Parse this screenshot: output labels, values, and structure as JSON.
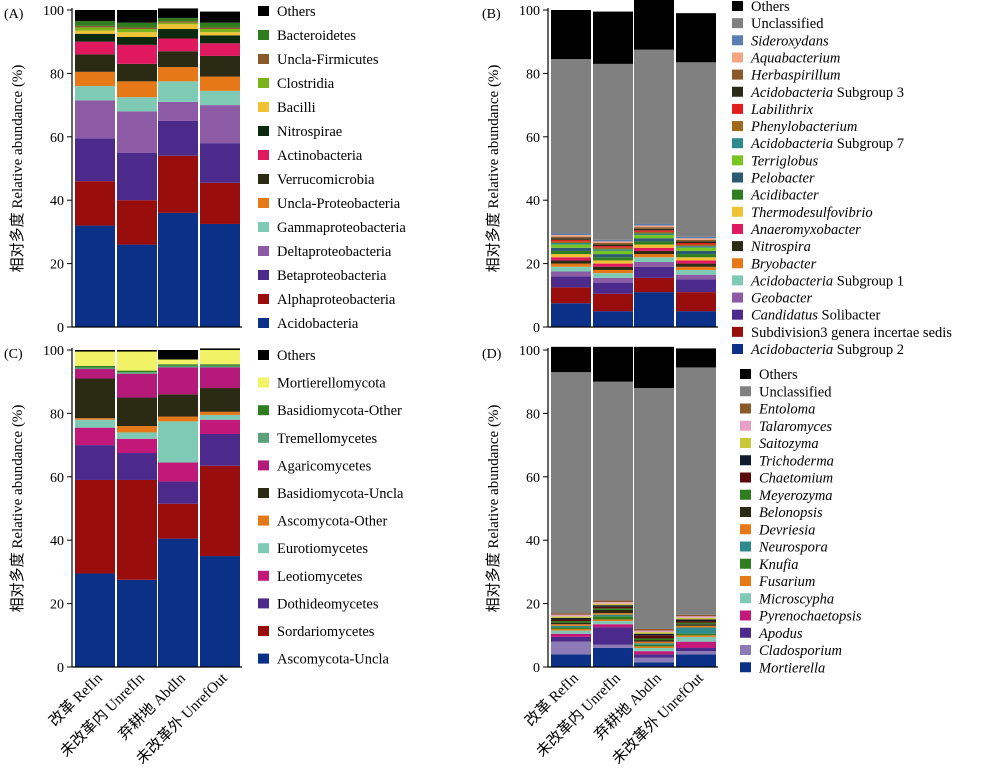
{
  "figure": {
    "ylabel": "相对多度 Relative abundance (%)",
    "xcategories": [
      "改革 RefIn",
      "未改革内 UnrefIn",
      "弃耕地 AbdIn",
      "未改革外 UnrefOut"
    ]
  },
  "chart_data": [
    {
      "panel": "(A)",
      "type": "bar",
      "stacked": true,
      "ylim": [
        0,
        100
      ],
      "yticks": [
        0,
        20,
        40,
        60,
        80,
        100
      ],
      "categories": [
        "改革 RefIn",
        "未改革内 UnrefIn",
        "弃耕地 AbdIn",
        "未改革外 UnrefOut"
      ],
      "series": [
        {
          "name": "Acidobacteria",
          "color": "#0b3087",
          "values": [
            32,
            26,
            36,
            32.5
          ]
        },
        {
          "name": "Alphaproteobacteria",
          "color": "#9a0d0d",
          "values": [
            14,
            14,
            18,
            13
          ]
        },
        {
          "name": "Betaproteobacteria",
          "color": "#4b2a8c",
          "values": [
            13.5,
            15,
            11,
            12.5
          ]
        },
        {
          "name": "Deltaproteobacteria",
          "color": "#8d5ba6",
          "values": [
            12,
            13,
            6,
            12
          ]
        },
        {
          "name": "Gammaproteobacteria",
          "color": "#7fcab5",
          "values": [
            4.5,
            4.5,
            6.5,
            4.5
          ]
        },
        {
          "name": "Uncla-Proteobacteria",
          "color": "#e67817",
          "values": [
            4.5,
            5,
            4.5,
            4.5
          ]
        },
        {
          "name": "Verrucomicrobia",
          "color": "#2b2a13",
          "values": [
            5.5,
            5.5,
            5,
            6.5
          ]
        },
        {
          "name": "Actinobacteria",
          "color": "#e0195e",
          "values": [
            4,
            6,
            4,
            4
          ]
        },
        {
          "name": "Nitrospirae",
          "color": "#0e2a0e",
          "values": [
            2.5,
            2.5,
            3,
            2.5
          ]
        },
        {
          "name": "Bacilli",
          "color": "#f1c232",
          "values": [
            1,
            1.5,
            1.5,
            1
          ]
        },
        {
          "name": "Clostridia",
          "color": "#7bb31b",
          "values": [
            1,
            1,
            0.5,
            1
          ]
        },
        {
          "name": "Uncla-Firmicutes",
          "color": "#8b5a2b",
          "values": [
            0.5,
            0.5,
            0.5,
            0.5
          ]
        },
        {
          "name": "Bacteroidetes",
          "color": "#2e7d1f",
          "values": [
            1.5,
            1.5,
            1,
            1.5
          ]
        },
        {
          "name": "Others",
          "color": "#000000",
          "values": [
            3.5,
            4,
            3,
            3.5
          ]
        }
      ]
    },
    {
      "panel": "(B)",
      "type": "bar",
      "stacked": true,
      "ylim": [
        0,
        100
      ],
      "yticks": [
        0,
        20,
        40,
        60,
        80,
        100
      ],
      "categories": [
        "改革 RefIn",
        "未改革内 UnrefIn",
        "弃耕地 AbdIn",
        "未改革外 UnrefOut"
      ],
      "series": [
        {
          "name": "Acidobacteria Subgroup 2",
          "color": "#0b3087",
          "values": [
            7.5,
            5,
            11,
            5
          ]
        },
        {
          "name": "Subdivision3 genera incertae sedis",
          "color": "#9a0d0d",
          "values": [
            5,
            5.5,
            4.5,
            6
          ]
        },
        {
          "name": "Candidatus Solibacter",
          "color": "#4b2a8c",
          "values": [
            3.5,
            3.5,
            3.5,
            4
          ]
        },
        {
          "name": "Geobacter",
          "color": "#8d5ba6",
          "values": [
            1.5,
            1.5,
            1.5,
            1.5
          ]
        },
        {
          "name": "Acidobacteria Subgroup 1",
          "color": "#7fcab5",
          "values": [
            1.5,
            1.5,
            1.5,
            1.5
          ]
        },
        {
          "name": "Bryobacter",
          "color": "#e67817",
          "values": [
            1,
            1,
            1,
            1
          ]
        },
        {
          "name": "Nitrospira",
          "color": "#2b2a13",
          "values": [
            1,
            1,
            1,
            1
          ]
        },
        {
          "name": "Anaeromyxobacter",
          "color": "#e0195e",
          "values": [
            1,
            1,
            1,
            1
          ]
        },
        {
          "name": "Thermodesulfovibrio",
          "color": "#f1c232",
          "values": [
            1,
            1,
            1,
            1
          ]
        },
        {
          "name": "Acidibacter",
          "color": "#2e7d1f",
          "values": [
            1,
            1,
            1,
            1
          ]
        },
        {
          "name": "Pelobacter",
          "color": "#2b5b73",
          "values": [
            1,
            1,
            1,
            1
          ]
        },
        {
          "name": "Terriglobus",
          "color": "#79c520",
          "values": [
            1,
            1,
            1,
            1
          ]
        },
        {
          "name": "Acidobacteria Subgroup 7",
          "color": "#2e8b8b",
          "values": [
            0.5,
            0.5,
            0.5,
            0.5
          ]
        },
        {
          "name": "Phenylobacterium",
          "color": "#a06a1c",
          "values": [
            0.5,
            0.5,
            0.5,
            0.5
          ]
        },
        {
          "name": "Labilithrix",
          "color": "#e11d1d",
          "values": [
            0.5,
            0.5,
            0.5,
            0.5
          ]
        },
        {
          "name": "Acidobacteria Subgroup 3",
          "color": "#2a2a1a",
          "values": [
            0.5,
            0.5,
            0.5,
            0.5
          ]
        },
        {
          "name": "Herbaspirillum",
          "color": "#8b5a2b",
          "values": [
            0.5,
            0.5,
            0.5,
            0.5
          ]
        },
        {
          "name": "Aquabacterium",
          "color": "#f4a582",
          "values": [
            0.5,
            0.5,
            0.5,
            0.5
          ]
        },
        {
          "name": "Sideroxydans",
          "color": "#5b7fb3",
          "values": [
            0.5,
            0.5,
            0.5,
            0.5
          ]
        },
        {
          "name": "Unclassified",
          "color": "#808080",
          "values": [
            55,
            55.5,
            55,
            55
          ]
        },
        {
          "name": "Others",
          "color": "#000000",
          "values": [
            15.5,
            16.5,
            16,
            15.5
          ]
        }
      ]
    },
    {
      "panel": "(C)",
      "type": "bar",
      "stacked": true,
      "ylim": [
        0,
        100
      ],
      "yticks": [
        0,
        20,
        40,
        60,
        80,
        100
      ],
      "categories": [
        "改革 RefIn",
        "未改革内 UnrefIn",
        "弃耕地 AbdIn",
        "未改革外 UnrefOut"
      ],
      "series": [
        {
          "name": "Ascomycota-Uncla",
          "color": "#0b3087",
          "values": [
            29.5,
            27.5,
            40.5,
            35
          ]
        },
        {
          "name": "Sordariomycetes",
          "color": "#9a0d0d",
          "values": [
            29.5,
            31.5,
            11,
            28.5
          ]
        },
        {
          "name": "Dothideomycetes",
          "color": "#4b2a8c",
          "values": [
            11,
            8.5,
            7,
            10
          ]
        },
        {
          "name": "Leotiomycetes",
          "color": "#c2187a",
          "values": [
            5.5,
            4.5,
            6,
            4.5
          ]
        },
        {
          "name": "Eurotiomycetes",
          "color": "#7fcab5",
          "values": [
            2.5,
            2,
            13,
            1.5
          ]
        },
        {
          "name": "Ascomycota-Other",
          "color": "#e67817",
          "values": [
            0.5,
            2,
            1.5,
            1
          ]
        },
        {
          "name": "Basidiomycota-Uncla",
          "color": "#2b2a13",
          "values": [
            12.5,
            9,
            7,
            7.5
          ]
        },
        {
          "name": "Agaricomycetes",
          "color": "#b5197a",
          "values": [
            3,
            7.5,
            8.5,
            6.5
          ]
        },
        {
          "name": "Tremellomycetes",
          "color": "#5aa07a",
          "values": [
            0.5,
            0.5,
            0.5,
            0.5
          ]
        },
        {
          "name": "Basidiomycota-Other",
          "color": "#2e7d1f",
          "values": [
            0.5,
            0.5,
            0.5,
            0.5
          ]
        },
        {
          "name": "Mortierellomycota",
          "color": "#f2f266",
          "values": [
            4.5,
            6,
            1.5,
            4.5
          ]
        },
        {
          "name": "Others",
          "color": "#000000",
          "values": [
            0.5,
            0.5,
            3,
            0.5
          ]
        }
      ]
    },
    {
      "panel": "(D)",
      "type": "bar",
      "stacked": true,
      "ylim": [
        0,
        100
      ],
      "yticks": [
        0,
        20,
        40,
        60,
        80,
        100
      ],
      "categories": [
        "改革 RefIn",
        "未改革内 UnrefIn",
        "弃耕地 AbdIn",
        "未改革外 UnrefOut"
      ],
      "series": [
        {
          "name": "Mortierella",
          "color": "#0b3087",
          "values": [
            4,
            6,
            1.5,
            4
          ]
        },
        {
          "name": "Cladosporium",
          "color": "#8d7bb8",
          "values": [
            4,
            1,
            1.5,
            1
          ]
        },
        {
          "name": "Apodus",
          "color": "#4b2a8c",
          "values": [
            1.5,
            5.5,
            1,
            1
          ]
        },
        {
          "name": "Pyrenochaetopsis",
          "color": "#c2187a",
          "values": [
            1,
            1,
            1,
            2
          ]
        },
        {
          "name": "Microscypha",
          "color": "#7fcab5",
          "values": [
            1,
            1,
            1,
            1.5
          ]
        },
        {
          "name": "Fusarium",
          "color": "#e67817",
          "values": [
            0.5,
            0.5,
            0.5,
            0.5
          ]
        },
        {
          "name": "Knufia",
          "color": "#2e7d1f",
          "values": [
            0.5,
            1,
            0.5,
            0.5
          ]
        },
        {
          "name": "Neurospora",
          "color": "#2e8b8b",
          "values": [
            0.5,
            0.5,
            0.5,
            2
          ]
        },
        {
          "name": "Devriesia",
          "color": "#e67817",
          "values": [
            0.5,
            0.5,
            0.5,
            0.5
          ]
        },
        {
          "name": "Belonopsis",
          "color": "#2b2a13",
          "values": [
            0.5,
            1,
            0.5,
            0.5
          ]
        },
        {
          "name": "Meyerozyma",
          "color": "#2e7d1f",
          "values": [
            0.5,
            0.5,
            0.5,
            0.5
          ]
        },
        {
          "name": "Chaetomium",
          "color": "#5a0a0a",
          "values": [
            0.5,
            0.5,
            1,
            0.5
          ]
        },
        {
          "name": "Trichoderma",
          "color": "#0e1a2e",
          "values": [
            0.5,
            0.5,
            0.5,
            0.5
          ]
        },
        {
          "name": "Saitozyma",
          "color": "#c8c83a",
          "values": [
            0.5,
            0.5,
            0.5,
            0.5
          ]
        },
        {
          "name": "Talaromyces",
          "color": "#e8a0c8",
          "values": [
            0.5,
            0.5,
            0.5,
            0.5
          ]
        },
        {
          "name": "Entoloma",
          "color": "#8b5a2b",
          "values": [
            0.5,
            0.5,
            0.5,
            0.5
          ]
        },
        {
          "name": "Unclassified",
          "color": "#808080",
          "values": [
            76,
            69,
            76,
            78
          ]
        },
        {
          "name": "Others",
          "color": "#000000",
          "values": [
            8,
            11,
            13,
            6
          ]
        }
      ]
    }
  ],
  "legends": [
    [
      {
        "text": "Others",
        "color": "#000000"
      },
      {
        "text": "Bacteroidetes",
        "color": "#2e7d1f"
      },
      {
        "text": "Uncla-Firmicutes",
        "color": "#8b5a2b"
      },
      {
        "text": "Clostridia",
        "color": "#7bb31b"
      },
      {
        "text": "Bacilli",
        "color": "#f1c232"
      },
      {
        "text": "Nitrospirae",
        "color": "#0e2a0e"
      },
      {
        "text": "Actinobacteria",
        "color": "#e0195e"
      },
      {
        "text": "Verrucomicrobia",
        "color": "#2b2a13"
      },
      {
        "text": "Uncla-Proteobacteria",
        "color": "#e67817"
      },
      {
        "text": "Gammaproteobacteria",
        "color": "#7fcab5"
      },
      {
        "text": "Deltaproteobacteria",
        "color": "#8d5ba6"
      },
      {
        "text": "Betaproteobacteria",
        "color": "#4b2a8c"
      },
      {
        "text": "Alphaproteobacteria",
        "color": "#9a0d0d"
      },
      {
        "text": "Acidobacteria",
        "color": "#0b3087"
      }
    ],
    [
      {
        "text": "Others",
        "color": "#000000"
      },
      {
        "text": "Unclassified",
        "color": "#808080"
      },
      {
        "text": "Sideroxydans",
        "color": "#5b7fb3",
        "italic": true
      },
      {
        "text": "Aquabacterium",
        "color": "#f4a582",
        "italic": true
      },
      {
        "text": "Herbaspirillum",
        "color": "#8b5a2b",
        "italic": true
      },
      {
        "text": "Acidobacteria",
        "suffix": " Subgroup 3",
        "color": "#2a2a1a",
        "italic": true
      },
      {
        "text": "Labilithrix",
        "color": "#e11d1d",
        "italic": true
      },
      {
        "text": "Phenylobacterium",
        "color": "#a06a1c",
        "italic": true
      },
      {
        "text": "Acidobacteria",
        "suffix": " Subgroup 7",
        "color": "#2e8b8b",
        "italic": true
      },
      {
        "text": "Terriglobus",
        "color": "#79c520",
        "italic": true
      },
      {
        "text": "Pelobacter",
        "color": "#2b5b73",
        "italic": true
      },
      {
        "text": "Acidibacter",
        "color": "#2e7d1f",
        "italic": true
      },
      {
        "text": "Thermodesulfovibrio",
        "color": "#f1c232",
        "italic": true
      },
      {
        "text": "Anaeromyxobacter",
        "color": "#e0195e",
        "italic": true
      },
      {
        "text": "Nitrospira",
        "color": "#2b2a13",
        "italic": true
      },
      {
        "text": "Bryobacter",
        "color": "#e67817",
        "italic": true
      },
      {
        "text": "Acidobacteria",
        "suffix": " Subgroup 1",
        "color": "#7fcab5",
        "italic": true
      },
      {
        "text": "Geobacter",
        "color": "#8d5ba6",
        "italic": true
      },
      {
        "text": "Candidatus",
        "suffix": " Solibacter",
        "color": "#4b2a8c",
        "italic": true
      },
      {
        "text": "Subdivision3 genera incertae sedis",
        "color": "#9a0d0d"
      },
      {
        "text": "Acidobacteria",
        "suffix": " Subgroup 2",
        "color": "#0b3087",
        "italic": true
      }
    ],
    [
      {
        "text": "Others",
        "color": "#000000"
      },
      {
        "text": "Mortierellomycota",
        "color": "#f2f266"
      },
      {
        "text": "Basidiomycota-Other",
        "color": "#2e7d1f"
      },
      {
        "text": "Tremellomycetes",
        "color": "#5aa07a"
      },
      {
        "text": "Agaricomycetes",
        "color": "#b5197a"
      },
      {
        "text": "Basidiomycota-Uncla",
        "color": "#2b2a13"
      },
      {
        "text": "Ascomycota-Other",
        "color": "#e67817"
      },
      {
        "text": "Eurotiomycetes",
        "color": "#7fcab5"
      },
      {
        "text": "Leotiomycetes",
        "color": "#c2187a"
      },
      {
        "text": "Dothideomycetes",
        "color": "#4b2a8c"
      },
      {
        "text": "Sordariomycetes",
        "color": "#9a0d0d"
      },
      {
        "text": "Ascomycota-Uncla",
        "color": "#0b3087"
      }
    ],
    [
      {
        "text": "Others",
        "color": "#000000"
      },
      {
        "text": "Unclassified",
        "color": "#808080"
      },
      {
        "text": "Entoloma",
        "color": "#8b5a2b",
        "italic": true
      },
      {
        "text": "Talaromyces",
        "color": "#e8a0c8",
        "italic": true
      },
      {
        "text": "Saitozyma",
        "color": "#c8c83a",
        "italic": true
      },
      {
        "text": "Trichoderma",
        "color": "#0e1a2e",
        "italic": true
      },
      {
        "text": "Chaetomium",
        "color": "#5a0a0a",
        "italic": true
      },
      {
        "text": "Meyerozyma",
        "color": "#2e7d1f",
        "italic": true
      },
      {
        "text": "Belonopsis",
        "color": "#2b2a13",
        "italic": true
      },
      {
        "text": "Devriesia",
        "color": "#e67817",
        "italic": true
      },
      {
        "text": "Neurospora",
        "color": "#2e8b8b",
        "italic": true
      },
      {
        "text": "Knufia",
        "color": "#2e7d1f",
        "italic": true
      },
      {
        "text": "Fusarium",
        "color": "#e67817",
        "italic": true
      },
      {
        "text": "Microscypha",
        "color": "#7fcab5",
        "italic": true
      },
      {
        "text": "Pyrenochaetopsis",
        "color": "#c2187a",
        "italic": true
      },
      {
        "text": "Apodus",
        "color": "#4b2a8c",
        "italic": true
      },
      {
        "text": "Cladosporium",
        "color": "#8d7bb8",
        "italic": true
      },
      {
        "text": "Mortierella",
        "color": "#0b3087",
        "italic": true
      }
    ]
  ]
}
